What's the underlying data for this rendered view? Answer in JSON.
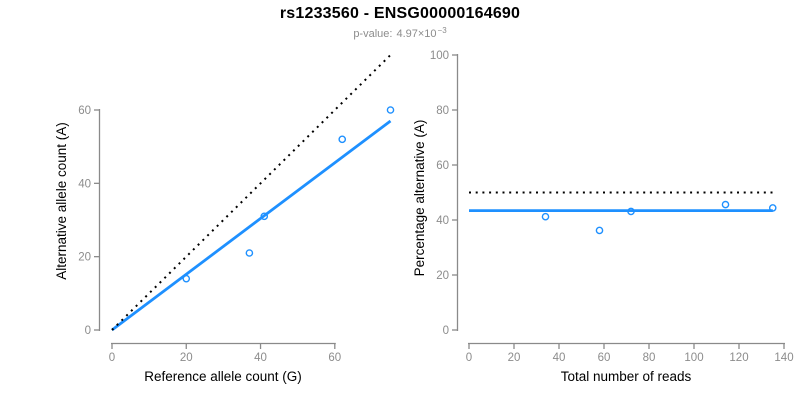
{
  "header": {
    "title": "rs1233560 - ENSG00000164690",
    "pvalue": {
      "label": "p-value:",
      "mantissa": "4.97",
      "multiplier": "×10",
      "exponent": "−3"
    }
  },
  "colors": {
    "accent_blue": "#1E90FF",
    "dotted_black": "#000000",
    "axis_gray": "#8a8a8a",
    "tick_label_gray": "#8c8c8c",
    "label_black": "#000000",
    "background": "#ffffff"
  },
  "chart_data": [
    {
      "id": "allele-counts",
      "type": "scatter",
      "xlabel": "Reference allele count (G)",
      "ylabel": "Alternative allele count (A)",
      "xlim": [
        0,
        75
      ],
      "ylim": [
        0,
        75
      ],
      "xticks": [
        0,
        20,
        40,
        60
      ],
      "yticks": [
        0,
        20,
        40,
        60
      ],
      "grid": false,
      "legend": "none",
      "points": [
        [
          20,
          14
        ],
        [
          37,
          21
        ],
        [
          41,
          31
        ],
        [
          62,
          52
        ],
        [
          75,
          60
        ]
      ],
      "lines": [
        {
          "name": "regression-line",
          "style": "solid",
          "color_key": "accent_blue",
          "x": [
            0,
            75
          ],
          "y": [
            0,
            57
          ]
        },
        {
          "name": "identity-line",
          "style": "dotted",
          "color_key": "dotted_black",
          "x": [
            0,
            75
          ],
          "y": [
            0,
            75
          ]
        }
      ]
    },
    {
      "id": "percentage-vs-reads",
      "type": "scatter",
      "xlabel": "Total number of reads",
      "ylabel": "Percentage alternative (A)",
      "xlim": [
        0,
        140
      ],
      "ylim": [
        0,
        100
      ],
      "xticks": [
        0,
        20,
        40,
        60,
        80,
        100,
        120,
        140
      ],
      "yticks": [
        0,
        20,
        40,
        60,
        80,
        100
      ],
      "grid": false,
      "legend": "none",
      "points": [
        [
          34,
          41.2
        ],
        [
          58,
          36.2
        ],
        [
          72,
          43.1
        ],
        [
          114,
          45.6
        ],
        [
          135,
          44.4
        ]
      ],
      "lines": [
        {
          "name": "mean-percentage-line",
          "style": "solid",
          "color_key": "accent_blue",
          "x": [
            0,
            135
          ],
          "y": [
            43.4,
            43.4
          ]
        },
        {
          "name": "expected-50-percent-line",
          "style": "dotted",
          "color_key": "dotted_black",
          "x": [
            0,
            135
          ],
          "y": [
            50,
            50
          ]
        }
      ]
    }
  ]
}
